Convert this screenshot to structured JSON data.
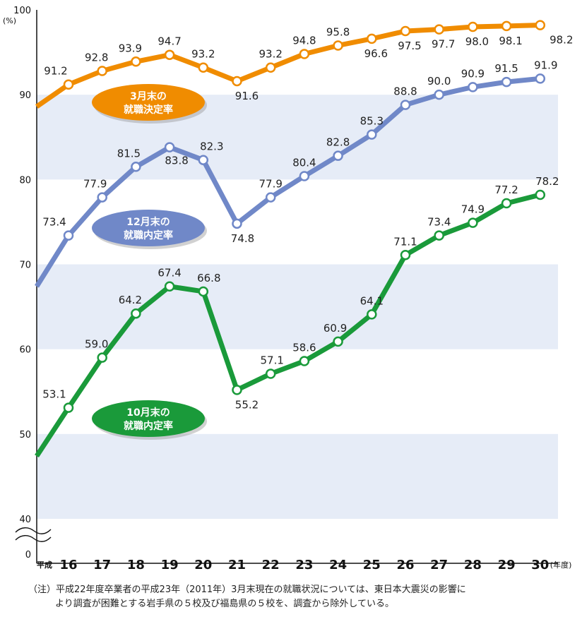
{
  "chart_data": {
    "type": "line",
    "title": "",
    "xlabel": "",
    "ylabel": "",
    "unit_label": "(%)",
    "x_prefix": "平成",
    "x_suffix": "(年度)",
    "categories": [
      "16",
      "17",
      "18",
      "19",
      "20",
      "21",
      "22",
      "23",
      "24",
      "25",
      "26",
      "27",
      "28",
      "29",
      "30"
    ],
    "ylim": [
      40,
      100
    ],
    "yticks": [
      "40",
      "50",
      "60",
      "70",
      "80",
      "90",
      "100"
    ],
    "y_break_label": "0",
    "grid": "alternating horizontal bands",
    "series": [
      {
        "name": "3月末の就職決定率",
        "color": "#f08c00",
        "values": [
          91.2,
          92.8,
          93.9,
          94.7,
          93.2,
          91.6,
          93.2,
          94.8,
          95.8,
          96.6,
          97.5,
          97.7,
          98.0,
          98.1,
          98.2
        ],
        "labels": [
          "91.2",
          "92.8",
          "93.9",
          "94.7",
          "93.2",
          "91.6",
          "93.2",
          "94.8",
          "95.8",
          "96.6",
          "97.5",
          "97.7",
          "98.0",
          "98.1",
          "98.2"
        ],
        "lead_in": 88.6
      },
      {
        "name": "12月末の就職内定率",
        "color": "#7088c8",
        "values": [
          73.4,
          77.9,
          81.5,
          83.8,
          82.3,
          74.8,
          77.9,
          80.4,
          82.8,
          85.3,
          88.8,
          90.0,
          90.9,
          91.5,
          91.9
        ],
        "labels": [
          "73.4",
          "77.9",
          "81.5",
          "83.8",
          "82.3",
          "74.8",
          "77.9",
          "80.4",
          "82.8",
          "85.3",
          "88.8",
          "90.0",
          "90.9",
          "91.5",
          "91.9"
        ],
        "lead_in": 67.4
      },
      {
        "name": "10月末の就職内定率",
        "color": "#1a9a3a",
        "values": [
          53.1,
          59.0,
          64.2,
          67.4,
          66.8,
          55.2,
          57.1,
          58.6,
          60.9,
          64.1,
          71.1,
          73.4,
          74.9,
          77.2,
          78.2
        ],
        "labels": [
          "53.1",
          "59.0",
          "64.2",
          "67.4",
          "66.8",
          "55.2",
          "57.1",
          "58.6",
          "60.9",
          "64.1",
          "71.1",
          "73.4",
          "74.9",
          "77.2",
          "78.2"
        ],
        "lead_in": 47.4
      }
    ],
    "series_badges": [
      {
        "line1": "3月末の",
        "line2": "就職決定率"
      },
      {
        "line1": "12月末の",
        "line2": "就職内定率"
      },
      {
        "line1": "10月末の",
        "line2": "就職内定率"
      }
    ],
    "band_color": "#e6ecf7"
  },
  "note": {
    "line1": "（注）平成22年度卒業者の平成23年（2011年）3月末現在の就職状況については、東日本大震災の影響に",
    "line2": "より調査が困難とする岩手県の５校及び福島県の５校を、調査から除外している。"
  }
}
